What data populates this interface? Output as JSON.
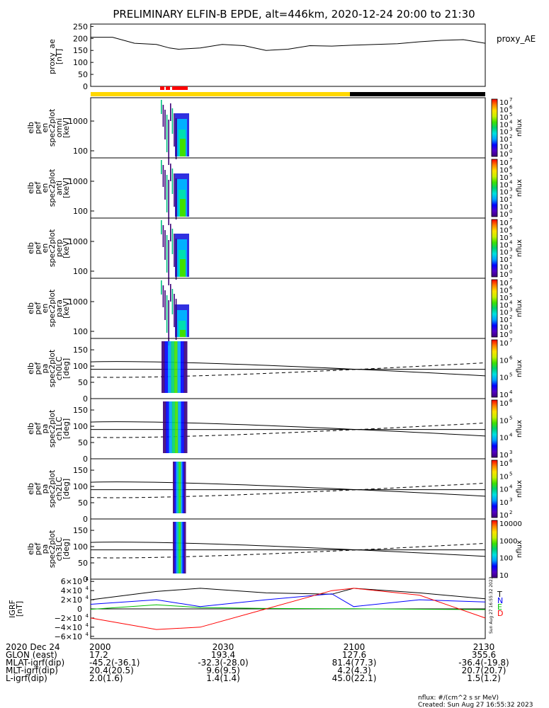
{
  "title": "PRELIMINARY ELFIN-B EPDE, alt=446km, 2020-12-24 20:00 to 21:30",
  "side_stamp": "Sun Aug 27 16:55:32 2023",
  "colors": {
    "ae_line": "#000000",
    "sunlit": "#ffd700",
    "eclipse": "#000000",
    "science_zone": "#ff0000",
    "T": "#000000",
    "N": "#0000ff",
    "E": "#00c000",
    "D": "#ff0000"
  },
  "panels": {
    "proxy_ae": {
      "ylabel": [
        "proxy_ae",
        "[nT]"
      ],
      "yticks": [
        "0",
        "50",
        "100",
        "150",
        "200",
        "250"
      ],
      "right_label": "proxy_AE"
    },
    "energy_panels": [
      {
        "ylabel": [
          "elb",
          "pef",
          "en",
          "spec2plot",
          "omni",
          "[keV]"
        ],
        "yticks": [
          "100",
          "1000"
        ],
        "cbar_ticks": [
          "10",
          "10",
          "10",
          "10",
          "10",
          "10",
          "10",
          "10"
        ],
        "cbar_exps": [
          "0",
          "1",
          "2",
          "3",
          "4",
          "5",
          "6",
          "7"
        ],
        "cbar_label": "nflux"
      },
      {
        "ylabel": [
          "elb",
          "pef",
          "en",
          "spec2plot",
          "anti",
          "[keV]"
        ],
        "yticks": [
          "100",
          "1000"
        ],
        "cbar_ticks": [
          "10",
          "10",
          "10",
          "10",
          "10",
          "10",
          "10",
          "10"
        ],
        "cbar_exps": [
          "0",
          "1",
          "2",
          "3",
          "4",
          "5",
          "6",
          "7"
        ],
        "cbar_label": "nflux"
      },
      {
        "ylabel": [
          "elb",
          "pef",
          "en",
          "spec2plot",
          "perp",
          "[keV]"
        ],
        "yticks": [
          "100",
          "1000"
        ],
        "cbar_ticks": [
          "10",
          "10",
          "10",
          "10",
          "10",
          "10",
          "10",
          "10"
        ],
        "cbar_exps": [
          "0",
          "1",
          "2",
          "3",
          "4",
          "5",
          "6",
          "7"
        ],
        "cbar_label": "nflux"
      },
      {
        "ylabel": [
          "elb",
          "pef",
          "en",
          "spec2plot",
          "para",
          "[keV]"
        ],
        "yticks": [
          "100",
          "1000"
        ],
        "cbar_ticks": [
          "10",
          "10",
          "10",
          "10",
          "10",
          "10",
          "10",
          "10"
        ],
        "cbar_exps": [
          "0",
          "1",
          "2",
          "3",
          "4",
          "5",
          "6",
          "7"
        ],
        "cbar_label": "nflux"
      }
    ],
    "pa_panels": [
      {
        "ylabel": [
          "elb",
          "pef",
          "pa",
          "spec2plot",
          "ch0LC",
          "[deg]"
        ],
        "yticks": [
          "0",
          "50",
          "100",
          "150"
        ],
        "cbar_ticks": [
          "10",
          "10",
          "10",
          "10"
        ],
        "cbar_exps": [
          "4",
          "5",
          "6",
          "7"
        ],
        "cbar_label": "nflux"
      },
      {
        "ylabel": [
          "elb",
          "pef",
          "pa",
          "spec2plot",
          "ch1LC",
          "[deg]"
        ],
        "yticks": [
          "0",
          "50",
          "100",
          "150"
        ],
        "cbar_ticks": [
          "10",
          "10",
          "10",
          "10"
        ],
        "cbar_exps": [
          "3",
          "4",
          "5",
          "6"
        ],
        "cbar_label": "nflux"
      },
      {
        "ylabel": [
          "elb",
          "pef",
          "pa",
          "spec2plot",
          "ch2LC",
          "[deg]"
        ],
        "yticks": [
          "0",
          "50",
          "100",
          "150"
        ],
        "cbar_ticks": [
          "10",
          "10",
          "10",
          "10",
          "10"
        ],
        "cbar_exps": [
          "2",
          "3",
          "4",
          "5",
          "6"
        ],
        "cbar_label": "nflux"
      },
      {
        "ylabel": [
          "elb",
          "pef",
          "pa",
          "spec2plot",
          "ch3LC",
          "[deg]"
        ],
        "yticks": [
          "0",
          "50",
          "100",
          "150"
        ],
        "cbar_ticks": [
          "10",
          "100",
          "1000",
          "10000"
        ],
        "cbar_exps": [
          "",
          "",
          "",
          ""
        ],
        "cbar_label": "nflux"
      }
    ],
    "igrf": {
      "ylabel": [
        "IGRF",
        "[nT]"
      ],
      "yticks": [
        {
          "m": "6",
          "s": "",
          "e": "4"
        },
        {
          "m": "4",
          "s": "",
          "e": "4"
        },
        {
          "m": "2",
          "s": "",
          "e": "4"
        },
        {
          "m": "0",
          "s": "",
          "e": ""
        },
        {
          "m": "2",
          "s": "−",
          "e": "4"
        },
        {
          "m": "4",
          "s": "−",
          "e": "4"
        },
        {
          "m": "6",
          "s": "−",
          "e": "4"
        }
      ],
      "legend": [
        "T",
        "N",
        "E",
        "D"
      ]
    }
  },
  "footer": {
    "rows": [
      {
        "label": "2020 Dec 24",
        "values": [
          "2000",
          "2030",
          "2100",
          "2130"
        ]
      },
      {
        "label": "GLON (east)",
        "values": [
          "17.2",
          "193.4",
          "127.6",
          "355.6"
        ]
      },
      {
        "label": "MLAT-igrf(dip)",
        "values": [
          "-45.2(-36.1)",
          "-32.3(-28.0)",
          "81.4(77.3)",
          "-36.4(-19.8)"
        ]
      },
      {
        "label": "MLT-igrf(dip)",
        "values": [
          "20.4(20.5)",
          "9.6(9.5)",
          "4.2(4.3)",
          "20.7(20.7)"
        ]
      },
      {
        "label": "L-igrf(dip)",
        "values": [
          "2.0(1.6)",
          "1.4(1.4)",
          "45.0(22.1)",
          "1.5(1.2)"
        ]
      }
    ],
    "units_note": "nflux: #/(cm^2 s sr MeV)",
    "created": "Created: Sun Aug 27 16:55:32 2023"
  },
  "chart_data": [
    {
      "type": "line",
      "title": "PRELIMINARY ELFIN-B EPDE, alt=446km, 2020-12-24 20:00 to 21:30",
      "series": [
        {
          "name": "proxy_AE",
          "x": [
            "20:00",
            "20:05",
            "20:10",
            "20:15",
            "20:18",
            "20:20",
            "20:25",
            "20:30",
            "20:35",
            "20:40",
            "20:45",
            "20:50",
            "20:55",
            "21:00",
            "21:05",
            "21:10",
            "21:15",
            "21:20",
            "21:25",
            "21:30"
          ],
          "values": [
            205,
            205,
            180,
            175,
            160,
            155,
            160,
            175,
            170,
            150,
            155,
            170,
            168,
            172,
            175,
            178,
            186,
            192,
            195,
            180
          ]
        }
      ],
      "ylim": [
        0,
        250
      ],
      "x_range": [
        "20:00",
        "21:30"
      ]
    },
    {
      "type": "line",
      "series": [
        {
          "name": "T",
          "x": [
            "20:00",
            "20:15",
            "20:25",
            "20:40",
            "20:55",
            "21:00",
            "21:15",
            "21:30"
          ],
          "values": [
            20000,
            38000,
            45000,
            35000,
            32000,
            45000,
            35000,
            22000
          ]
        },
        {
          "name": "N",
          "x": [
            "20:00",
            "20:15",
            "20:25",
            "20:40",
            "20:55",
            "21:00",
            "21:15",
            "21:30"
          ],
          "values": [
            10000,
            20000,
            5000,
            20000,
            33000,
            5000,
            20000,
            15000
          ]
        },
        {
          "name": "E",
          "x": [
            "20:00",
            "20:15",
            "20:25",
            "20:40",
            "20:55",
            "21:00",
            "21:15",
            "21:30"
          ],
          "values": [
            -1000,
            9000,
            3000,
            1000,
            500,
            300,
            -800,
            -1500
          ]
        },
        {
          "name": "D",
          "x": [
            "20:00",
            "20:15",
            "20:25",
            "20:40",
            "20:55",
            "21:00",
            "21:15",
            "21:30"
          ],
          "values": [
            -20000,
            -45000,
            -40000,
            0,
            40000,
            45000,
            30000,
            -20000
          ]
        }
      ],
      "ylim": [
        -60000,
        60000
      ]
    }
  ]
}
